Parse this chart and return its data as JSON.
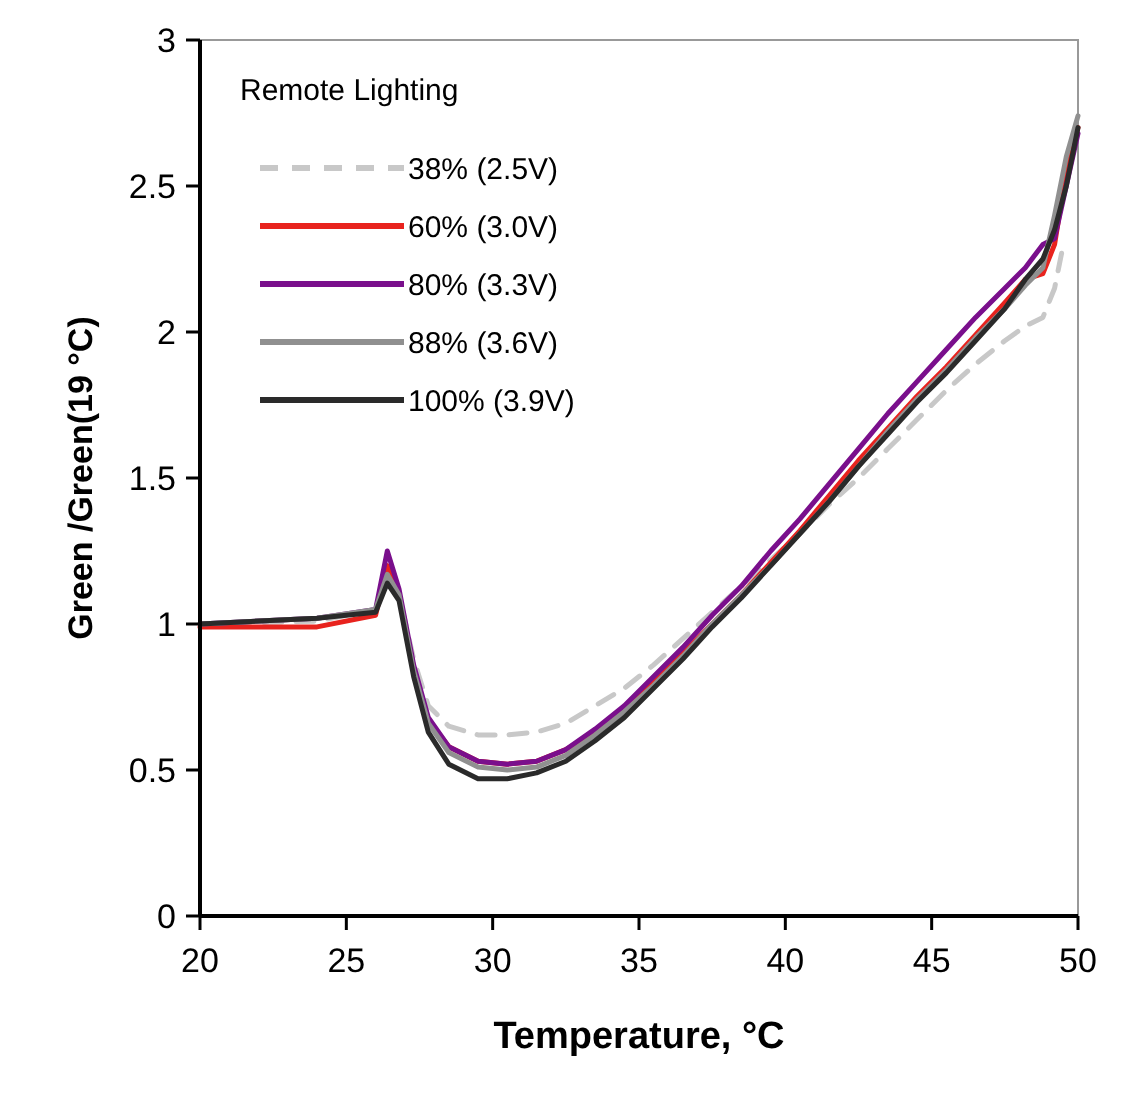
{
  "chart_data": {
    "type": "line",
    "xlabel": "Temperature, °C",
    "ylabel": "Green /Green(19 °C)",
    "legend_title": "Remote Lighting",
    "legend": "top left",
    "grid": false,
    "xlim": [
      20,
      50
    ],
    "ylim": [
      0,
      3
    ],
    "xticks": [
      20,
      25,
      30,
      35,
      40,
      45,
      50
    ],
    "yticks": [
      0,
      0.5,
      1,
      1.5,
      2,
      2.5,
      3
    ],
    "series": [
      {
        "name": "38% (2.5V)",
        "color": "#c8c8c8",
        "line_style": "dashed",
        "x": [
          20,
          24,
          26,
          26.4,
          26.8,
          27.3,
          27.8,
          28.5,
          29.5,
          30.5,
          31.5,
          32.5,
          33.5,
          34.5,
          35.5,
          36.5,
          37.5,
          38.5,
          39.5,
          40.5,
          41.5,
          42.5,
          43.5,
          44.5,
          45.5,
          46.5,
          47.5,
          48.2,
          48.8,
          49.2,
          49.5
        ],
        "values": [
          1.0,
          1.01,
          1.05,
          1.18,
          1.1,
          0.88,
          0.72,
          0.65,
          0.62,
          0.62,
          0.63,
          0.66,
          0.72,
          0.78,
          0.86,
          0.95,
          1.04,
          1.13,
          1.22,
          1.31,
          1.41,
          1.5,
          1.6,
          1.7,
          1.8,
          1.89,
          1.97,
          2.02,
          2.05,
          2.15,
          2.3
        ]
      },
      {
        "name": "60% (3.0V)",
        "color": "#e8231e",
        "x": [
          20,
          24,
          26,
          26.4,
          26.8,
          27.3,
          27.8,
          28.5,
          29.5,
          30.5,
          31.5,
          32.5,
          33.5,
          34.5,
          35.5,
          36.5,
          37.5,
          38.5,
          39.5,
          40.5,
          41.5,
          42.5,
          43.5,
          44.5,
          45.5,
          46.5,
          47.5,
          48.2,
          48.8,
          49.2,
          49.6,
          50
        ],
        "values": [
          0.99,
          0.99,
          1.03,
          1.2,
          1.1,
          0.85,
          0.67,
          0.58,
          0.53,
          0.52,
          0.53,
          0.57,
          0.63,
          0.71,
          0.8,
          0.9,
          1.0,
          1.1,
          1.21,
          1.32,
          1.44,
          1.56,
          1.67,
          1.78,
          1.88,
          1.99,
          2.1,
          2.18,
          2.2,
          2.3,
          2.55,
          2.7
        ]
      },
      {
        "name": "80% (3.3V)",
        "color": "#7a0f8c",
        "x": [
          20,
          24,
          26,
          26.4,
          26.8,
          27.3,
          27.8,
          28.5,
          29.5,
          30.5,
          31.5,
          32.5,
          33.5,
          34.5,
          35.5,
          36.5,
          37.5,
          38.5,
          39.5,
          40.5,
          41.5,
          42.5,
          43.5,
          44.5,
          45.5,
          46.5,
          47.5,
          48.2,
          48.8,
          49.2,
          49.6,
          50
        ],
        "values": [
          1.0,
          1.02,
          1.05,
          1.25,
          1.12,
          0.86,
          0.68,
          0.58,
          0.53,
          0.52,
          0.53,
          0.57,
          0.64,
          0.72,
          0.82,
          0.92,
          1.03,
          1.13,
          1.25,
          1.36,
          1.48,
          1.6,
          1.72,
          1.83,
          1.94,
          2.05,
          2.15,
          2.22,
          2.3,
          2.32,
          2.5,
          2.68
        ]
      },
      {
        "name": "88% (3.6V)",
        "color": "#909090",
        "x": [
          20,
          24,
          26,
          26.4,
          26.8,
          27.3,
          27.8,
          28.5,
          29.5,
          30.5,
          31.5,
          32.5,
          33.5,
          34.5,
          35.5,
          36.5,
          37.5,
          38.5,
          39.5,
          40.5,
          41.5,
          42.5,
          43.5,
          44.5,
          45.5,
          46.5,
          47.5,
          48.2,
          48.8,
          49.2,
          49.6,
          50
        ],
        "values": [
          1.0,
          1.02,
          1.05,
          1.17,
          1.1,
          0.84,
          0.66,
          0.56,
          0.51,
          0.5,
          0.51,
          0.55,
          0.62,
          0.7,
          0.79,
          0.89,
          1.0,
          1.1,
          1.2,
          1.31,
          1.42,
          1.54,
          1.66,
          1.77,
          1.87,
          1.98,
          2.08,
          2.16,
          2.22,
          2.4,
          2.6,
          2.74
        ]
      },
      {
        "name": "100% (3.9V)",
        "color": "#2a2a2a",
        "x": [
          20,
          24,
          26,
          26.4,
          26.8,
          27.3,
          27.8,
          28.5,
          29.5,
          30.5,
          31.5,
          32.5,
          33.5,
          34.5,
          35.5,
          36.5,
          37.5,
          38.5,
          39.5,
          40.5,
          41.5,
          42.5,
          43.5,
          44.5,
          45.5,
          46.5,
          47.5,
          48.2,
          48.8,
          49.2,
          49.6,
          50
        ],
        "values": [
          1.0,
          1.02,
          1.04,
          1.14,
          1.08,
          0.82,
          0.63,
          0.52,
          0.47,
          0.47,
          0.49,
          0.53,
          0.6,
          0.68,
          0.78,
          0.88,
          0.99,
          1.09,
          1.2,
          1.31,
          1.42,
          1.54,
          1.65,
          1.76,
          1.86,
          1.97,
          2.08,
          2.18,
          2.25,
          2.35,
          2.5,
          2.7
        ]
      }
    ]
  }
}
